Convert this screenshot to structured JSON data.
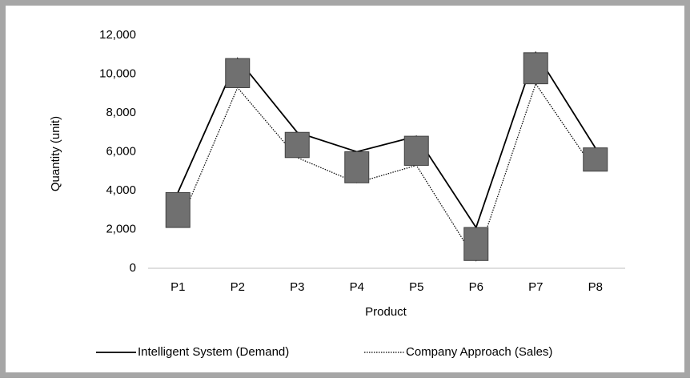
{
  "chart_data": {
    "type": "line",
    "x_label": "Product",
    "y_label": "Quantity (unit)",
    "categories": [
      "P1",
      "P2",
      "P3",
      "P4",
      "P5",
      "P6",
      "P7",
      "P8"
    ],
    "series": [
      {
        "name": "Intelligent System (Demand)",
        "color": "#000000",
        "dash": "solid",
        "values": [
          3900,
          10800,
          7000,
          6000,
          6800,
          2100,
          11100,
          6200
        ]
      },
      {
        "name": "Company Approach (Sales)",
        "color": "#000000",
        "dash": "dotted",
        "values": [
          2100,
          9300,
          5700,
          4400,
          5300,
          400,
          9500,
          5000
        ]
      }
    ],
    "updown_bars": true,
    "bar_color": "#707070",
    "ylim": [
      0,
      12000
    ],
    "yticks": [
      0,
      {
        "value": 2000,
        "label": "2,000"
      },
      {
        "value": 4000,
        "label": "4,000"
      },
      {
        "value": 6000,
        "label": "6,000"
      },
      {
        "value": 8000,
        "label": "8,000"
      },
      {
        "value": 10000,
        "label": "10,000"
      },
      {
        "value": 12000,
        "label": "12,000"
      }
    ],
    "grid": false,
    "legend": "bottom"
  }
}
